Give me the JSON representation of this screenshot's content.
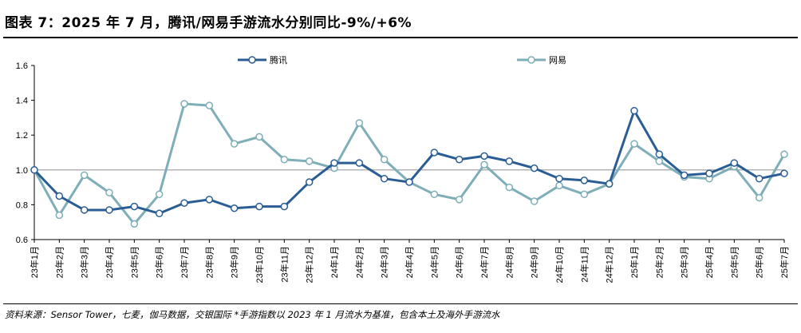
{
  "header": {
    "title": "图表 7：2025 年 7 月，腾讯/网易手游流水分别同比-9%/+6%"
  },
  "footer": {
    "source": "资料来源：Sensor Tower，七麦，伽马数据，交银国际 *手游指数以 2023 年 1 月流水为基准，包含本土及海外手游流水"
  },
  "chart_data": {
    "type": "line",
    "categories": [
      "23年1月",
      "23年2月",
      "23年3月",
      "23年4月",
      "23年5月",
      "23年6月",
      "23年7月",
      "23年8月",
      "23年9月",
      "23年10月",
      "23年11月",
      "23年12月",
      "24年1月",
      "24年2月",
      "24年3月",
      "24年4月",
      "24年5月",
      "24年6月",
      "24年7月",
      "24年8月",
      "24年9月",
      "24年10月",
      "24年11月",
      "24年12月",
      "25年1月",
      "25年2月",
      "25年3月",
      "25年4月",
      "25年5月",
      "25年6月",
      "25年7月"
    ],
    "y_ticks": [
      "0.6",
      "0.8",
      "1.0",
      "1.2",
      "1.4",
      "1.6"
    ],
    "ylim": [
      0.6,
      1.6
    ],
    "reference_line": 1.0,
    "legend_position": "top",
    "series": [
      {
        "name": "腾讯",
        "color": "#2a5d94",
        "values": [
          1.0,
          0.85,
          0.77,
          0.77,
          0.79,
          0.75,
          0.81,
          0.83,
          0.78,
          0.79,
          0.79,
          0.93,
          1.04,
          1.04,
          0.95,
          0.93,
          1.1,
          1.06,
          1.08,
          1.05,
          1.01,
          0.95,
          0.94,
          0.92,
          1.34,
          1.09,
          0.97,
          0.98,
          1.04,
          0.95,
          0.98
        ]
      },
      {
        "name": "网易",
        "color": "#7eaeb7",
        "values": [
          1.0,
          0.74,
          0.97,
          0.87,
          0.69,
          0.86,
          1.38,
          1.37,
          1.15,
          1.19,
          1.06,
          1.05,
          1.01,
          1.27,
          1.06,
          0.93,
          0.86,
          0.83,
          1.03,
          0.9,
          0.82,
          0.91,
          0.86,
          0.92,
          1.15,
          1.05,
          0.96,
          0.95,
          1.02,
          0.84,
          1.09
        ]
      }
    ]
  }
}
